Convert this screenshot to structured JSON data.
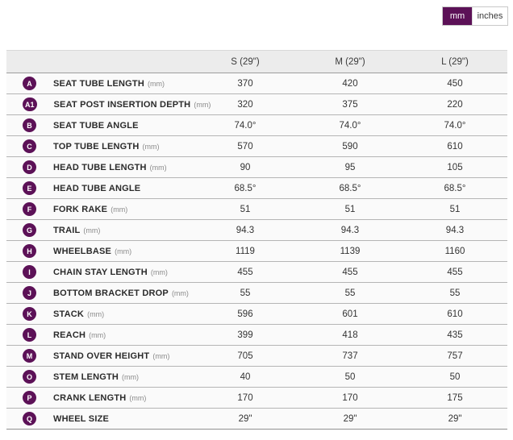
{
  "accent_color": "#5c1157",
  "unit_toggle": {
    "mm_label": "mm",
    "inches_label": "inches",
    "selected": "mm"
  },
  "table": {
    "columns": [
      "S (29\")",
      "M (29\")",
      "L (29\")"
    ],
    "rows": [
      {
        "badge": "A",
        "label": "SEAT TUBE LENGTH",
        "unit": "(mm)",
        "values": [
          "370",
          "420",
          "450"
        ]
      },
      {
        "badge": "A1",
        "label": "SEAT POST INSERTION DEPTH",
        "unit": "(mm)",
        "values": [
          "320",
          "375",
          "220"
        ]
      },
      {
        "badge": "B",
        "label": "SEAT TUBE ANGLE",
        "unit": "",
        "values": [
          "74.0°",
          "74.0°",
          "74.0°"
        ]
      },
      {
        "badge": "C",
        "label": "TOP TUBE LENGTH",
        "unit": "(mm)",
        "values": [
          "570",
          "590",
          "610"
        ]
      },
      {
        "badge": "D",
        "label": "HEAD TUBE LENGTH",
        "unit": "(mm)",
        "values": [
          "90",
          "95",
          "105"
        ]
      },
      {
        "badge": "E",
        "label": "HEAD TUBE ANGLE",
        "unit": "",
        "values": [
          "68.5°",
          "68.5°",
          "68.5°"
        ]
      },
      {
        "badge": "F",
        "label": "FORK RAKE",
        "unit": "(mm)",
        "values": [
          "51",
          "51",
          "51"
        ]
      },
      {
        "badge": "G",
        "label": "TRAIL",
        "unit": "(mm)",
        "values": [
          "94.3",
          "94.3",
          "94.3"
        ]
      },
      {
        "badge": "H",
        "label": "WHEELBASE",
        "unit": "(mm)",
        "values": [
          "1119",
          "1139",
          "1160"
        ]
      },
      {
        "badge": "I",
        "label": "CHAIN STAY LENGTH",
        "unit": "(mm)",
        "values": [
          "455",
          "455",
          "455"
        ]
      },
      {
        "badge": "J",
        "label": "BOTTOM BRACKET DROP",
        "unit": "(mm)",
        "values": [
          "55",
          "55",
          "55"
        ]
      },
      {
        "badge": "K",
        "label": "STACK",
        "unit": "(mm)",
        "values": [
          "596",
          "601",
          "610"
        ]
      },
      {
        "badge": "L",
        "label": "REACH",
        "unit": "(mm)",
        "values": [
          "399",
          "418",
          "435"
        ]
      },
      {
        "badge": "M",
        "label": "STAND OVER HEIGHT",
        "unit": "(mm)",
        "values": [
          "705",
          "737",
          "757"
        ]
      },
      {
        "badge": "O",
        "label": "STEM LENGTH",
        "unit": "(mm)",
        "values": [
          "40",
          "50",
          "50"
        ]
      },
      {
        "badge": "P",
        "label": "CRANK LENGTH",
        "unit": "(mm)",
        "values": [
          "170",
          "170",
          "175"
        ]
      },
      {
        "badge": "Q",
        "label": "WHEEL SIZE",
        "unit": "",
        "values": [
          "29\"",
          "29\"",
          "29\""
        ]
      }
    ]
  }
}
